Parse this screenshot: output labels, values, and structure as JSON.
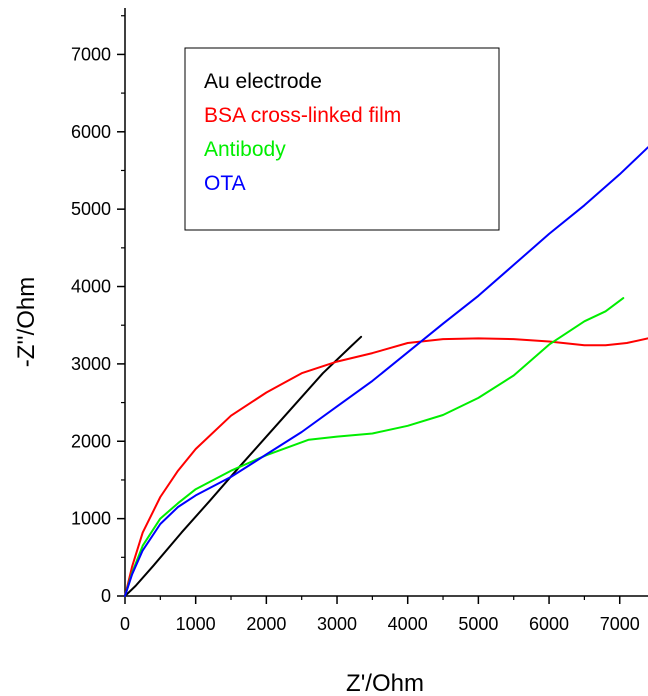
{
  "chart_data": {
    "type": "line",
    "xlabel": "Z'/Ohm",
    "ylabel": "-Z''/Ohm",
    "xlim": [
      0,
      7400
    ],
    "ylim": [
      0,
      7600
    ],
    "xticks": [
      0,
      1000,
      2000,
      3000,
      4000,
      5000,
      6000,
      7000
    ],
    "yticks": [
      0,
      1000,
      2000,
      3000,
      4000,
      5000,
      6000,
      7000
    ],
    "xtick_labels": [
      "0",
      "1000",
      "2000",
      "3000",
      "4000",
      "5000",
      "6000",
      "7000"
    ],
    "ytick_labels": [
      "0",
      "1000",
      "2000",
      "3000",
      "4000",
      "5000",
      "6000",
      "7000"
    ],
    "grid": false,
    "legend_position": "top-left",
    "series": [
      {
        "name": "Au electrode",
        "color": "#000000",
        "x": [
          0,
          150,
          400,
          800,
          1200,
          1600,
          2000,
          2400,
          2800,
          3200,
          3340
        ],
        "y": [
          0,
          130,
          390,
          820,
          1230,
          1650,
          2060,
          2470,
          2880,
          3230,
          3350
        ]
      },
      {
        "name": "BSA cross-linked film",
        "color": "#ff0000",
        "x": [
          0,
          100,
          250,
          500,
          750,
          1000,
          1500,
          2000,
          2500,
          3000,
          3500,
          4000,
          4500,
          5000,
          5500,
          6000,
          6500,
          6800,
          7100,
          7400
        ],
        "y": [
          0,
          380,
          820,
          1280,
          1620,
          1900,
          2330,
          2630,
          2880,
          3030,
          3140,
          3270,
          3320,
          3330,
          3320,
          3290,
          3240,
          3240,
          3270,
          3330
        ]
      },
      {
        "name": "Antibody",
        "color": "#00ee00",
        "x": [
          0,
          100,
          250,
          500,
          750,
          1000,
          1500,
          2000,
          2600,
          3000,
          3500,
          4000,
          4500,
          5000,
          5500,
          6000,
          6500,
          6800,
          7050
        ],
        "y": [
          0,
          300,
          650,
          1000,
          1200,
          1380,
          1620,
          1820,
          2020,
          2060,
          2100,
          2200,
          2340,
          2560,
          2850,
          3250,
          3550,
          3680,
          3850
        ]
      },
      {
        "name": "OTA",
        "color": "#0000ff",
        "x": [
          0,
          100,
          250,
          500,
          750,
          1000,
          1500,
          2000,
          2500,
          3000,
          3500,
          4000,
          4500,
          5000,
          5500,
          6000,
          6500,
          7000,
          7400
        ],
        "y": [
          0,
          280,
          590,
          930,
          1150,
          1300,
          1540,
          1830,
          2120,
          2450,
          2780,
          3150,
          3520,
          3880,
          4280,
          4680,
          5050,
          5450,
          5800
        ]
      }
    ]
  }
}
